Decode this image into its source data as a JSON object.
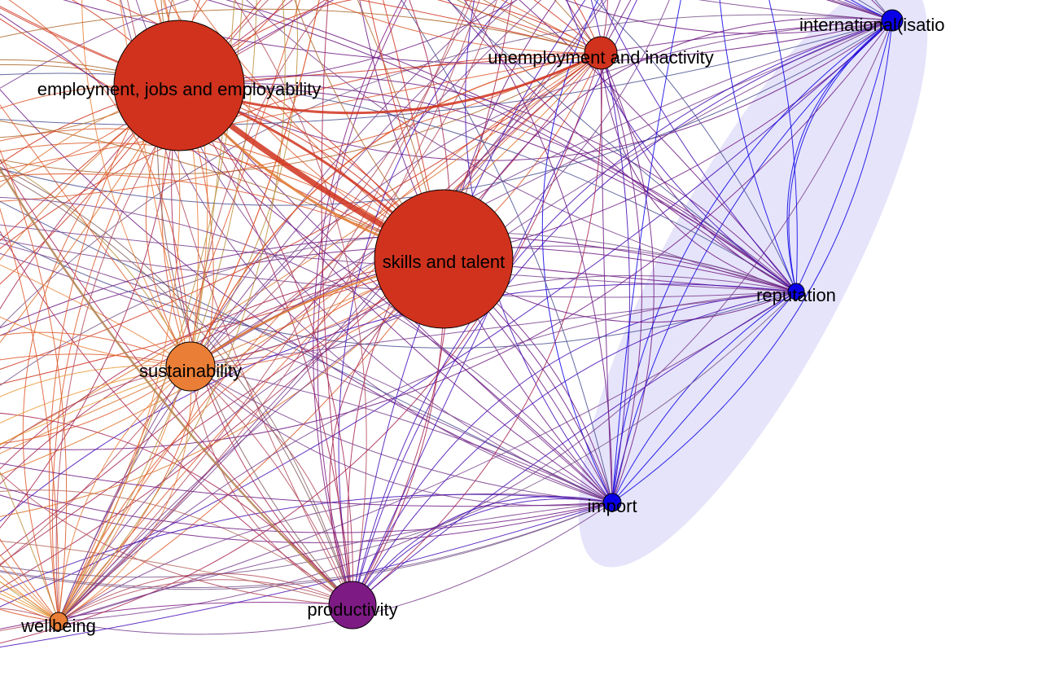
{
  "nodes": [
    {
      "label": "employment, jobs and employability",
      "color": "#d0321d"
    },
    {
      "label": "unemployment and inactivity",
      "color": "#d0321d"
    },
    {
      "label": "international(isatio",
      "color": "#0a00e8"
    },
    {
      "label": "skills and talent",
      "color": "#d0321d"
    },
    {
      "label": "reputation",
      "color": "#0a00e8"
    },
    {
      "label": "sustainability",
      "color": "#ea7e36"
    },
    {
      "label": "import",
      "color": "#0a00e8"
    },
    {
      "label": "productivity",
      "color": "#7e1a84"
    },
    {
      "label": "wellbeing",
      "color": "#ea7e36"
    }
  ]
}
